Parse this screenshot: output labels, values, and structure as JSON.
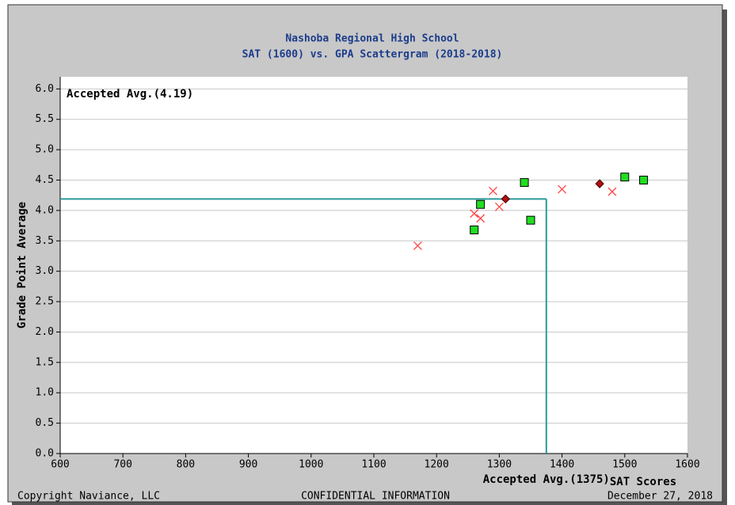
{
  "chart_data": {
    "type": "scatter",
    "title": "Nashoba Regional High School",
    "subtitle": "SAT (1600) vs. GPA Scattergram (2018-2018)",
    "xlabel": "SAT Scores",
    "ylabel": "Grade Point Average",
    "xlim": [
      600,
      1600
    ],
    "ylim": [
      0,
      6.2
    ],
    "xticks": [
      600,
      700,
      800,
      900,
      1000,
      1100,
      1200,
      1300,
      1400,
      1500,
      1600
    ],
    "yticks": [
      {
        "value": 0,
        "label": "0.0"
      },
      0.5,
      {
        "value": 1,
        "label": "1.0"
      },
      1.5,
      {
        "value": 2,
        "label": "2.0"
      },
      2.5,
      {
        "value": 3,
        "label": "3.0"
      },
      3.5,
      {
        "value": 4,
        "label": "4.0"
      },
      4.5,
      {
        "value": 5,
        "label": "5.0"
      },
      5.5,
      {
        "value": 6,
        "label": "6.0"
      }
    ],
    "grid": true,
    "series": [
      {
        "color": "#22dd22",
        "marker": "square",
        "x": [
          1260,
          1270,
          1340,
          1350,
          1500,
          1530
        ],
        "values": [
          3.68,
          4.1,
          4.46,
          3.84,
          4.55,
          4.5
        ]
      },
      {
        "color": "#ff4444",
        "marker": "x",
        "x": [
          1170,
          1260,
          1270,
          1290,
          1300,
          1400,
          1480
        ],
        "values": [
          3.42,
          3.95,
          3.87,
          4.32,
          4.06,
          4.35,
          4.31
        ]
      },
      {
        "color": "#b01010",
        "marker": "diamond",
        "x": [
          1310,
          1460
        ],
        "values": [
          4.19,
          4.44
        ]
      }
    ],
    "avg_y": {
      "text": "Accepted Avg.(4.19)",
      "value": 4.19
    },
    "avg_x": {
      "text": "Accepted Avg.(1375)",
      "value": 1375
    },
    "avg_color": "#2a9a9a"
  },
  "footer": {
    "left": "Copyright Naviance, LLC",
    "center": "CONFIDENTIAL INFORMATION",
    "right": "December 27, 2018"
  }
}
